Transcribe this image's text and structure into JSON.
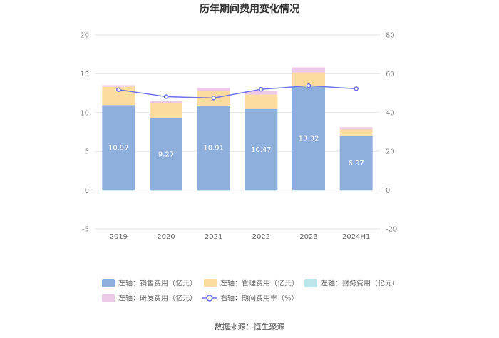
{
  "chart_data": {
    "type": "bar",
    "title": "历年期间费用变化情况",
    "categories": [
      "2019",
      "2020",
      "2021",
      "2022",
      "2023",
      "2024H1"
    ],
    "left_axis": {
      "min": -5,
      "max": 20,
      "ticks": [
        -5,
        0,
        5,
        10,
        15,
        20
      ],
      "unit": "亿元"
    },
    "right_axis": {
      "min": -20,
      "max": 80,
      "ticks": [
        -20,
        0,
        20,
        40,
        60,
        80
      ],
      "unit": "%"
    },
    "series": [
      {
        "name": "左轴：销售费用（亿元）",
        "axis": "left",
        "kind": "bar",
        "color": "#8eaedb",
        "values": [
          10.97,
          9.27,
          10.91,
          10.47,
          13.32,
          6.97
        ],
        "show_labels": true
      },
      {
        "name": "左轴：管理费用（亿元）",
        "axis": "left",
        "kind": "bar",
        "color": "#fddca0",
        "values": [
          2.35,
          2.0,
          1.85,
          1.85,
          1.85,
          0.85
        ],
        "show_labels": false
      },
      {
        "name": "左轴：财务费用（亿元）",
        "axis": "left",
        "kind": "bar",
        "color": "#bde6ea",
        "values": [
          -0.1,
          -0.12,
          -0.12,
          -0.1,
          -0.08,
          -0.05
        ],
        "show_labels": false
      },
      {
        "name": "左轴：研发费用（亿元）",
        "axis": "left",
        "kind": "bar",
        "color": "#ebc9e7",
        "values": [
          0.2,
          0.2,
          0.4,
          0.45,
          0.65,
          0.3
        ],
        "show_labels": false
      },
      {
        "name": "右轴：期间费用率（%）",
        "axis": "right",
        "kind": "line",
        "color": "#6f74e8",
        "values": [
          51.8,
          48.2,
          47.5,
          52.0,
          53.8,
          52.3
        ],
        "show_labels": false
      }
    ],
    "grid": true,
    "legend_position": "bottom"
  },
  "source": "数据来源：恒生聚源"
}
